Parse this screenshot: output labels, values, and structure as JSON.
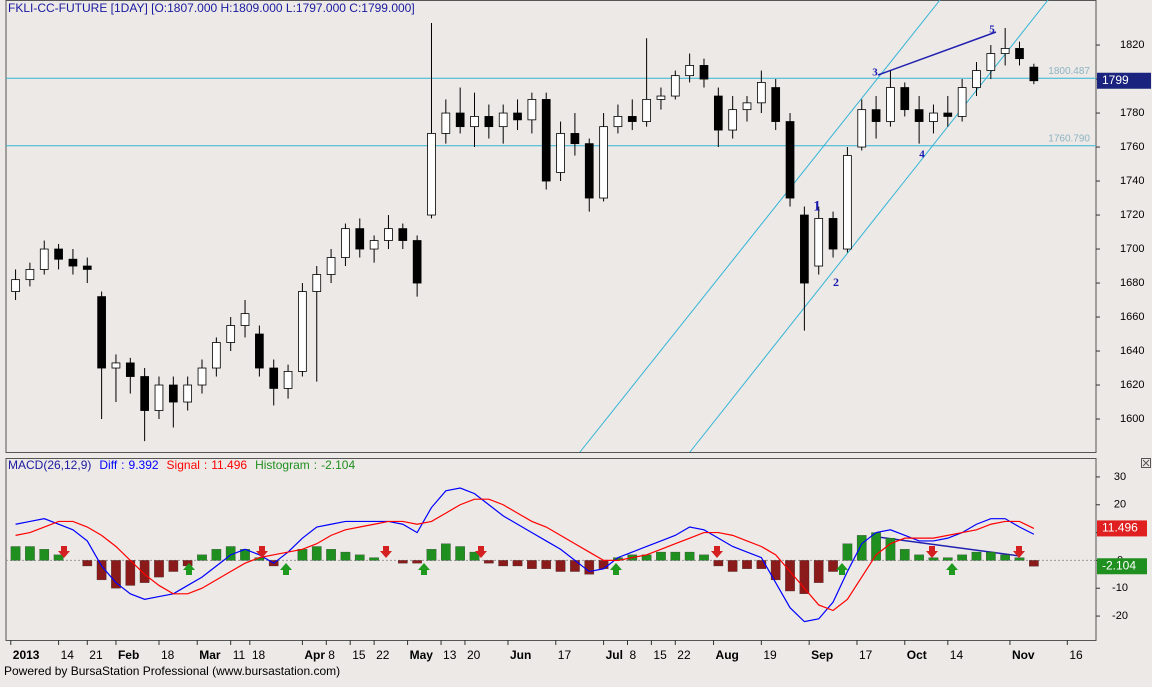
{
  "chart_data": [
    {
      "type": "candlestick",
      "title": "FKLI-CC-FUTURE [1DAY] [O:1807.000 H:1809.000 L:1797.000 C:1799.000]",
      "x": [
        2,
        5,
        8,
        11,
        14,
        17,
        20,
        23,
        26,
        29,
        32,
        35,
        38,
        41,
        44,
        47,
        50,
        53,
        56,
        59,
        62,
        65,
        68,
        71,
        74,
        77,
        80,
        83,
        86,
        89,
        92,
        95,
        98,
        101,
        104,
        107,
        110,
        113,
        116,
        119,
        122,
        125,
        128,
        131,
        134,
        137,
        140,
        143,
        146,
        149,
        152,
        155,
        158,
        161,
        164,
        167,
        170,
        173,
        176,
        179,
        182,
        185,
        188,
        191,
        194,
        197,
        200,
        203,
        206,
        209,
        212,
        215
      ],
      "open": [
        1675,
        1682,
        1688,
        1700,
        1694,
        1690,
        1672,
        1630,
        1633,
        1625,
        1605,
        1620,
        1610,
        1620,
        1630,
        1645,
        1655,
        1650,
        1630,
        1618,
        1628,
        1675,
        1685,
        1695,
        1712,
        1700,
        1705,
        1712,
        1705,
        1720,
        1768,
        1780,
        1772,
        1778,
        1772,
        1780,
        1776,
        1788,
        1745,
        1768,
        1762,
        1730,
        1772,
        1778,
        1775,
        1788,
        1790,
        1802,
        1808,
        1790,
        1770,
        1782,
        1786,
        1795,
        1775,
        1720,
        1690,
        1718,
        1700,
        1760,
        1782,
        1775,
        1795,
        1782,
        1775,
        1780,
        1778,
        1795,
        1805,
        1815,
        1818,
        1807
      ],
      "high": [
        1688,
        1692,
        1705,
        1703,
        1700,
        1695,
        1675,
        1638,
        1636,
        1630,
        1625,
        1625,
        1625,
        1635,
        1648,
        1660,
        1670,
        1655,
        1635,
        1632,
        1680,
        1690,
        1700,
        1715,
        1718,
        1708,
        1720,
        1715,
        1708,
        1833,
        1788,
        1795,
        1792,
        1785,
        1785,
        1788,
        1792,
        1792,
        1775,
        1780,
        1765,
        1780,
        1785,
        1788,
        1824,
        1795,
        1805,
        1815,
        1812,
        1795,
        1790,
        1790,
        1805,
        1800,
        1780,
        1725,
        1725,
        1722,
        1760,
        1788,
        1790,
        1805,
        1798,
        1790,
        1785,
        1790,
        1800,
        1810,
        1820,
        1830,
        1822,
        1809
      ],
      "low": [
        1670,
        1678,
        1685,
        1688,
        1685,
        1680,
        1600,
        1610,
        1615,
        1587,
        1600,
        1595,
        1605,
        1615,
        1625,
        1640,
        1648,
        1625,
        1608,
        1612,
        1625,
        1622,
        1680,
        1690,
        1695,
        1692,
        1700,
        1700,
        1672,
        1718,
        1762,
        1768,
        1760,
        1765,
        1762,
        1770,
        1768,
        1735,
        1740,
        1755,
        1722,
        1728,
        1768,
        1770,
        1772,
        1782,
        1788,
        1798,
        1795,
        1760,
        1765,
        1775,
        1780,
        1770,
        1725,
        1652,
        1685,
        1695,
        1698,
        1758,
        1765,
        1772,
        1778,
        1762,
        1768,
        1772,
        1775,
        1790,
        1800,
        1808,
        1808,
        1797
      ],
      "close": [
        1682,
        1688,
        1700,
        1694,
        1690,
        1688,
        1630,
        1633,
        1625,
        1605,
        1620,
        1610,
        1620,
        1630,
        1645,
        1655,
        1662,
        1630,
        1618,
        1628,
        1675,
        1685,
        1695,
        1712,
        1700,
        1705,
        1712,
        1705,
        1680,
        1768,
        1780,
        1772,
        1778,
        1772,
        1780,
        1776,
        1788,
        1740,
        1768,
        1762,
        1730,
        1772,
        1778,
        1775,
        1788,
        1790,
        1802,
        1808,
        1800,
        1770,
        1782,
        1786,
        1798,
        1775,
        1730,
        1680,
        1718,
        1700,
        1755,
        1782,
        1775,
        1795,
        1782,
        1775,
        1780,
        1778,
        1795,
        1805,
        1815,
        1818,
        1812,
        1799
      ],
      "up_color": "#ffffff",
      "down_color": "#000000",
      "xlim": [
        0,
        228
      ],
      "xticks": [
        {
          "value": 1,
          "label": "2013"
        },
        {
          "value": 11,
          "label": "14"
        },
        {
          "value": 17,
          "label": "21"
        },
        {
          "value": 23,
          "label": "Feb"
        },
        {
          "value": 32,
          "label": "18"
        },
        {
          "value": 40,
          "label": "Mar"
        },
        {
          "value": 47,
          "label": "11"
        },
        {
          "value": 51,
          "label": "18"
        },
        {
          "value": 62,
          "label": "Apr"
        },
        {
          "value": 67,
          "label": "8"
        },
        {
          "value": 72,
          "label": "15"
        },
        {
          "value": 77,
          "label": "22"
        },
        {
          "value": 84,
          "label": "May"
        },
        {
          "value": 91,
          "label": "13"
        },
        {
          "value": 96,
          "label": "20"
        },
        {
          "value": 105,
          "label": "Jun"
        },
        {
          "value": 115,
          "label": "17"
        },
        {
          "value": 125,
          "label": "Jul"
        },
        {
          "value": 130,
          "label": "8"
        },
        {
          "value": 135,
          "label": "15"
        },
        {
          "value": 140,
          "label": "22"
        },
        {
          "value": 148,
          "label": "Aug"
        },
        {
          "value": 158,
          "label": "19"
        },
        {
          "value": 168,
          "label": "Sep"
        },
        {
          "value": 178,
          "label": "17"
        },
        {
          "value": 188,
          "label": "Oct"
        },
        {
          "value": 197,
          "label": "14"
        },
        {
          "value": 210,
          "label": "Nov"
        },
        {
          "value": 222,
          "label": "16"
        }
      ],
      "ylim": [
        1580.6,
        1846.5
      ],
      "yticks": [
        1600,
        1620,
        1640,
        1660,
        1680,
        1700,
        1720,
        1740,
        1760,
        1780,
        1800,
        1820
      ],
      "levels": [
        1800.487,
        {
          "value": 1760.79,
          "label": "1760.790"
        }
      ],
      "level_color": "#33b5d6",
      "last_price": 1799,
      "wave_labels": [
        "1",
        "2",
        "3",
        "4",
        "5"
      ]
    },
    {
      "type": "macd",
      "title": "MACD(26,12,9)",
      "separator": ":",
      "x": [
        2,
        5,
        8,
        11,
        14,
        17,
        20,
        23,
        26,
        29,
        32,
        35,
        38,
        41,
        44,
        47,
        50,
        53,
        56,
        59,
        62,
        65,
        68,
        71,
        74,
        77,
        80,
        83,
        86,
        89,
        92,
        95,
        98,
        101,
        104,
        107,
        110,
        113,
        116,
        119,
        122,
        125,
        128,
        131,
        134,
        137,
        140,
        143,
        146,
        149,
        152,
        155,
        158,
        161,
        164,
        167,
        170,
        173,
        176,
        179,
        182,
        185,
        188,
        191,
        194,
        197,
        200,
        203,
        206,
        209,
        212,
        215
      ],
      "series": [
        {
          "name": "Diff",
          "color": "#0000ff",
          "values": [
            13,
            14,
            15,
            13,
            11,
            7,
            -2,
            -8,
            -12,
            -14,
            -13,
            -12,
            -9,
            -6,
            -2,
            2,
            4,
            2,
            -1,
            3,
            8,
            12,
            13,
            14,
            14,
            14,
            14,
            13,
            10,
            19,
            25,
            26,
            24,
            20,
            16,
            13,
            10,
            7,
            4,
            0,
            -4,
            -3,
            1,
            3,
            5,
            7,
            9,
            12,
            11,
            8,
            5,
            3,
            1,
            -8,
            -17,
            -22,
            -21,
            -15,
            -4,
            6,
            10,
            11,
            9,
            7,
            7,
            8,
            10,
            13,
            15,
            15,
            12,
            9.392
          ]
        },
        {
          "name": "Signal",
          "color": "#ff0000",
          "values": [
            9,
            10,
            12,
            14,
            14,
            12,
            9,
            5,
            0,
            -5,
            -9,
            -12,
            -12,
            -10,
            -7,
            -4,
            -1,
            1,
            2,
            3,
            4,
            6,
            9,
            11,
            12,
            13,
            14,
            14,
            13,
            14,
            17,
            20,
            22,
            22,
            20,
            17,
            14,
            12,
            9,
            6,
            3,
            0,
            0,
            1,
            2,
            4,
            6,
            8,
            10,
            10,
            9,
            7,
            5,
            2,
            -4,
            -10,
            -16,
            -18,
            -14,
            -6,
            2,
            6,
            8,
            8,
            8,
            9,
            10,
            11,
            13,
            14,
            14,
            11.496
          ]
        },
        {
          "name": "Histogram",
          "color": "#1f8f1f",
          "negative_color": "#8b1a1a",
          "values": [
            5,
            5,
            4,
            2,
            0,
            -2,
            -7,
            -10,
            -9,
            -8,
            -6,
            -4,
            -2,
            2,
            4,
            5,
            4,
            1,
            -2,
            0,
            4,
            5,
            4,
            3,
            2,
            1,
            0,
            -1,
            -1,
            4,
            6,
            5,
            3,
            -1,
            -2,
            -2,
            -3,
            -3,
            -4,
            -4,
            -5,
            -3,
            1,
            2,
            2,
            3,
            3,
            3,
            2,
            -2,
            -4,
            -3,
            -3,
            -7,
            -11,
            -12,
            -8,
            -4,
            6,
            9,
            10,
            8,
            4,
            2,
            1,
            1,
            2,
            3,
            3,
            2,
            1,
            -2.104
          ]
        }
      ],
      "xlim": [
        0,
        228
      ],
      "ylim": [
        -28.6,
        36.8
      ],
      "yticks": [
        30,
        20,
        10,
        0,
        -10,
        -20
      ]
    }
  ],
  "footer": "Powered by BursaStation Professional (www.bursastation.com)"
}
